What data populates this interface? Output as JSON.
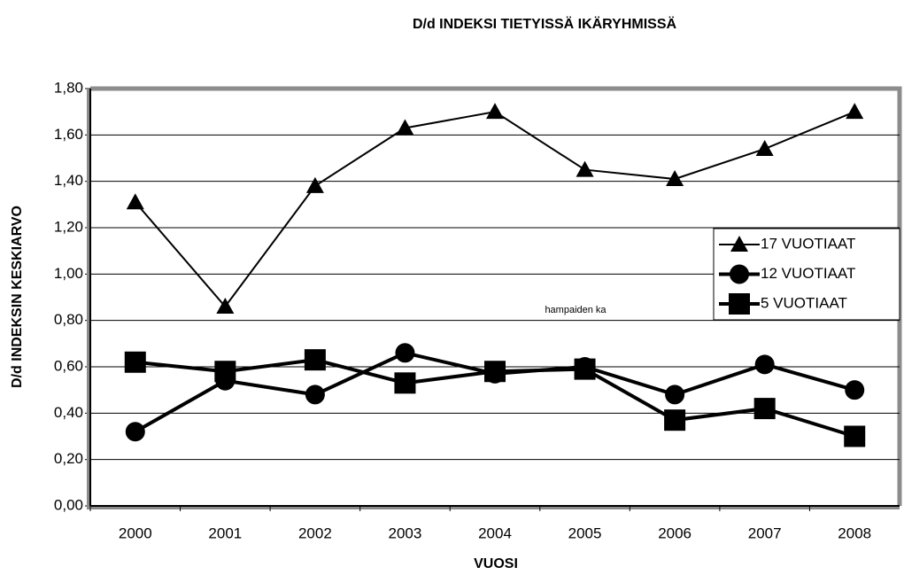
{
  "chart_data": {
    "type": "line",
    "title": "D/d INDEKSI TIETYISSÄ IKÄRYHMISSÄ",
    "x_label": "VUOSI",
    "y_label": "D/d INDEKSIN KESKIARVO",
    "annotation": "hampaiden ka",
    "categories": [
      "2000",
      "2001",
      "2002",
      "2003",
      "2004",
      "2005",
      "2006",
      "2007",
      "2008"
    ],
    "series": [
      {
        "name": "17 VUOTIAAT",
        "color": "#000000",
        "marker": "triangle",
        "line_width": 2,
        "values": [
          1.31,
          0.86,
          1.38,
          1.63,
          1.7,
          1.45,
          1.41,
          1.54,
          1.7
        ]
      },
      {
        "name": "12 VUOTIAAT",
        "color": "#000000",
        "marker": "circle",
        "line_width": 4,
        "values": [
          0.32,
          0.54,
          0.48,
          0.66,
          0.57,
          0.6,
          0.48,
          0.61,
          0.5
        ]
      },
      {
        "name": "5 VUOTIAAT",
        "color": "#000000",
        "marker": "square",
        "line_width": 4,
        "values": [
          0.62,
          0.58,
          0.63,
          0.53,
          0.58,
          0.59,
          0.37,
          0.42,
          0.3
        ]
      }
    ],
    "ylim": [
      0,
      1.8
    ],
    "yticks": [
      {
        "value": 0,
        "label": "0,00"
      },
      {
        "value": 0.2,
        "label": "0,20"
      },
      {
        "value": 0.4,
        "label": "0,40"
      },
      {
        "value": 0.6,
        "label": "0,60"
      },
      {
        "value": 0.8,
        "label": "0,80"
      },
      {
        "value": 1.0,
        "label": "1,00"
      },
      {
        "value": 1.2,
        "label": "1,20"
      },
      {
        "value": 1.4,
        "label": "1,40"
      },
      {
        "value": 1.6,
        "label": "1,60"
      },
      {
        "value": 1.8,
        "label": "1,80"
      }
    ],
    "grid": true,
    "legend": "right"
  }
}
